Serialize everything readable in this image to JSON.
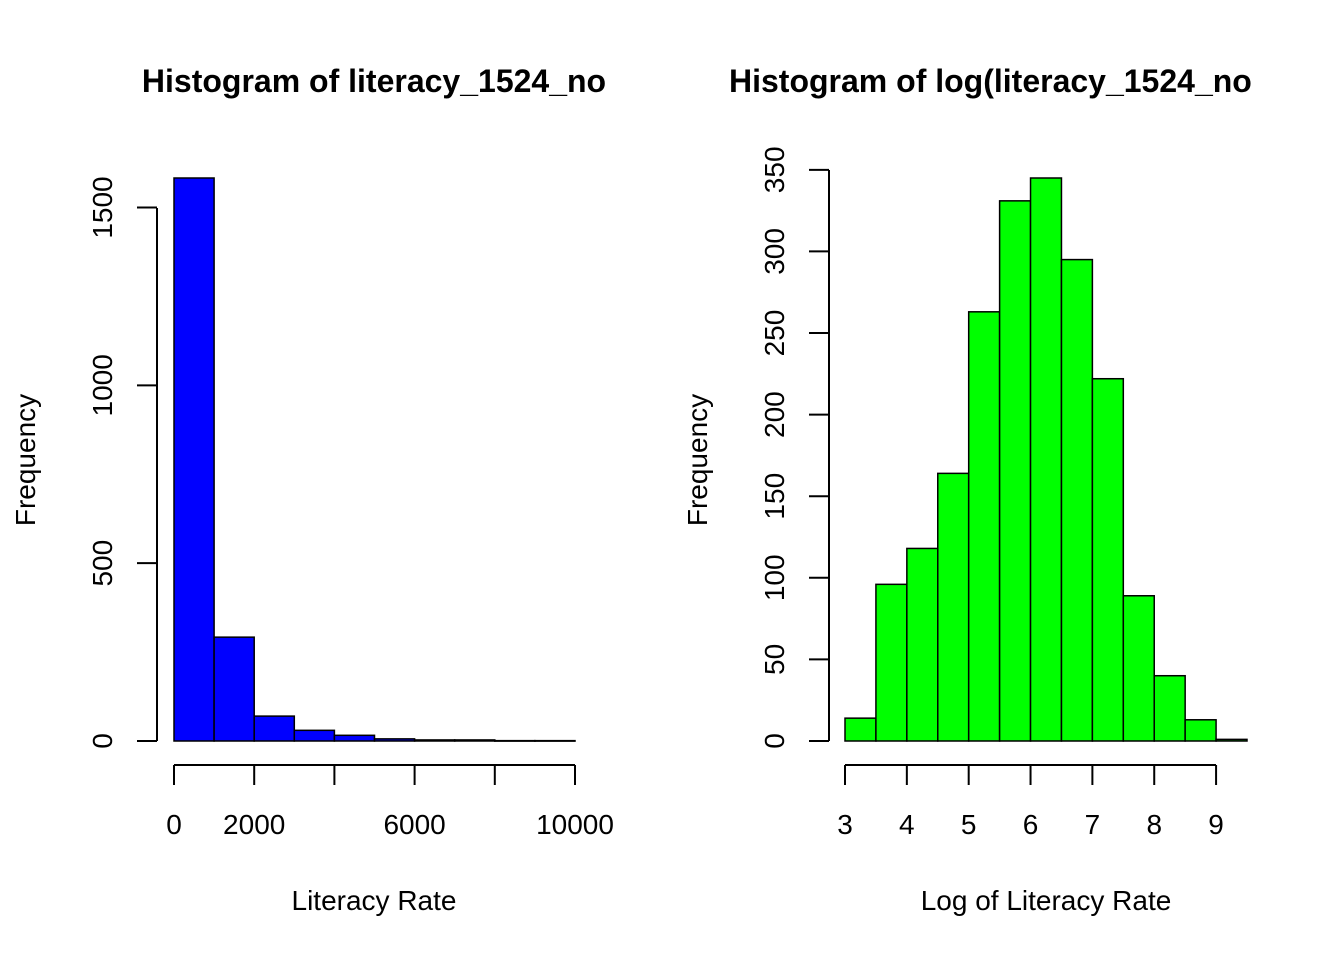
{
  "chart_data": [
    {
      "type": "bar",
      "title": "Histogram of literacy_1524_no",
      "xlabel": "Literacy Rate",
      "ylabel": "Frequency",
      "bar_color": "#0000FF",
      "bins": [
        {
          "x0": 0,
          "x1": 1000,
          "count": 1583
        },
        {
          "x0": 1000,
          "x1": 2000,
          "count": 292
        },
        {
          "x0": 2000,
          "x1": 3000,
          "count": 70
        },
        {
          "x0": 3000,
          "x1": 4000,
          "count": 30
        },
        {
          "x0": 4000,
          "x1": 5000,
          "count": 16
        },
        {
          "x0": 5000,
          "x1": 6000,
          "count": 6
        },
        {
          "x0": 6000,
          "x1": 7000,
          "count": 3
        },
        {
          "x0": 7000,
          "x1": 8000,
          "count": 3
        },
        {
          "x0": 8000,
          "x1": 9000,
          "count": 1
        },
        {
          "x0": 9000,
          "x1": 10000,
          "count": 1
        }
      ],
      "xlim": [
        0,
        10000
      ],
      "ylim": [
        0,
        1583
      ],
      "xticks": [
        0,
        2000,
        4000,
        6000,
        8000,
        10000
      ],
      "xtick_labels": [
        "0",
        "2000",
        "",
        "6000",
        "",
        "10000"
      ],
      "yticks": [
        0,
        500,
        1000,
        1500
      ],
      "ytick_labels": [
        "0",
        "500",
        "1000",
        "1500"
      ],
      "grid": false
    },
    {
      "type": "bar",
      "title": "Histogram of log(literacy_1524_no",
      "xlabel": "Log of Literacy Rate",
      "ylabel": "Frequency",
      "bar_color": "#00FF00",
      "bins": [
        {
          "x0": 3.0,
          "x1": 3.5,
          "count": 14
        },
        {
          "x0": 3.5,
          "x1": 4.0,
          "count": 96
        },
        {
          "x0": 4.0,
          "x1": 4.5,
          "count": 118
        },
        {
          "x0": 4.5,
          "x1": 5.0,
          "count": 164
        },
        {
          "x0": 5.0,
          "x1": 5.5,
          "count": 263
        },
        {
          "x0": 5.5,
          "x1": 6.0,
          "count": 331
        },
        {
          "x0": 6.0,
          "x1": 6.5,
          "count": 345
        },
        {
          "x0": 6.5,
          "x1": 7.0,
          "count": 295
        },
        {
          "x0": 7.0,
          "x1": 7.5,
          "count": 222
        },
        {
          "x0": 7.5,
          "x1": 8.0,
          "count": 89
        },
        {
          "x0": 8.0,
          "x1": 8.5,
          "count": 40
        },
        {
          "x0": 8.5,
          "x1": 9.0,
          "count": 13
        },
        {
          "x0": 9.0,
          "x1": 9.5,
          "count": 1
        }
      ],
      "xlim": [
        3,
        9.5
      ],
      "ylim": [
        0,
        350
      ],
      "xticks": [
        3,
        4,
        5,
        6,
        7,
        8,
        9
      ],
      "xtick_labels": [
        "3",
        "4",
        "5",
        "6",
        "7",
        "8",
        "9"
      ],
      "yticks": [
        0,
        50,
        100,
        150,
        200,
        250,
        300,
        350
      ],
      "ytick_labels": [
        "0",
        "50",
        "100",
        "150",
        "200",
        "250",
        "300",
        "350"
      ],
      "grid": false
    }
  ]
}
